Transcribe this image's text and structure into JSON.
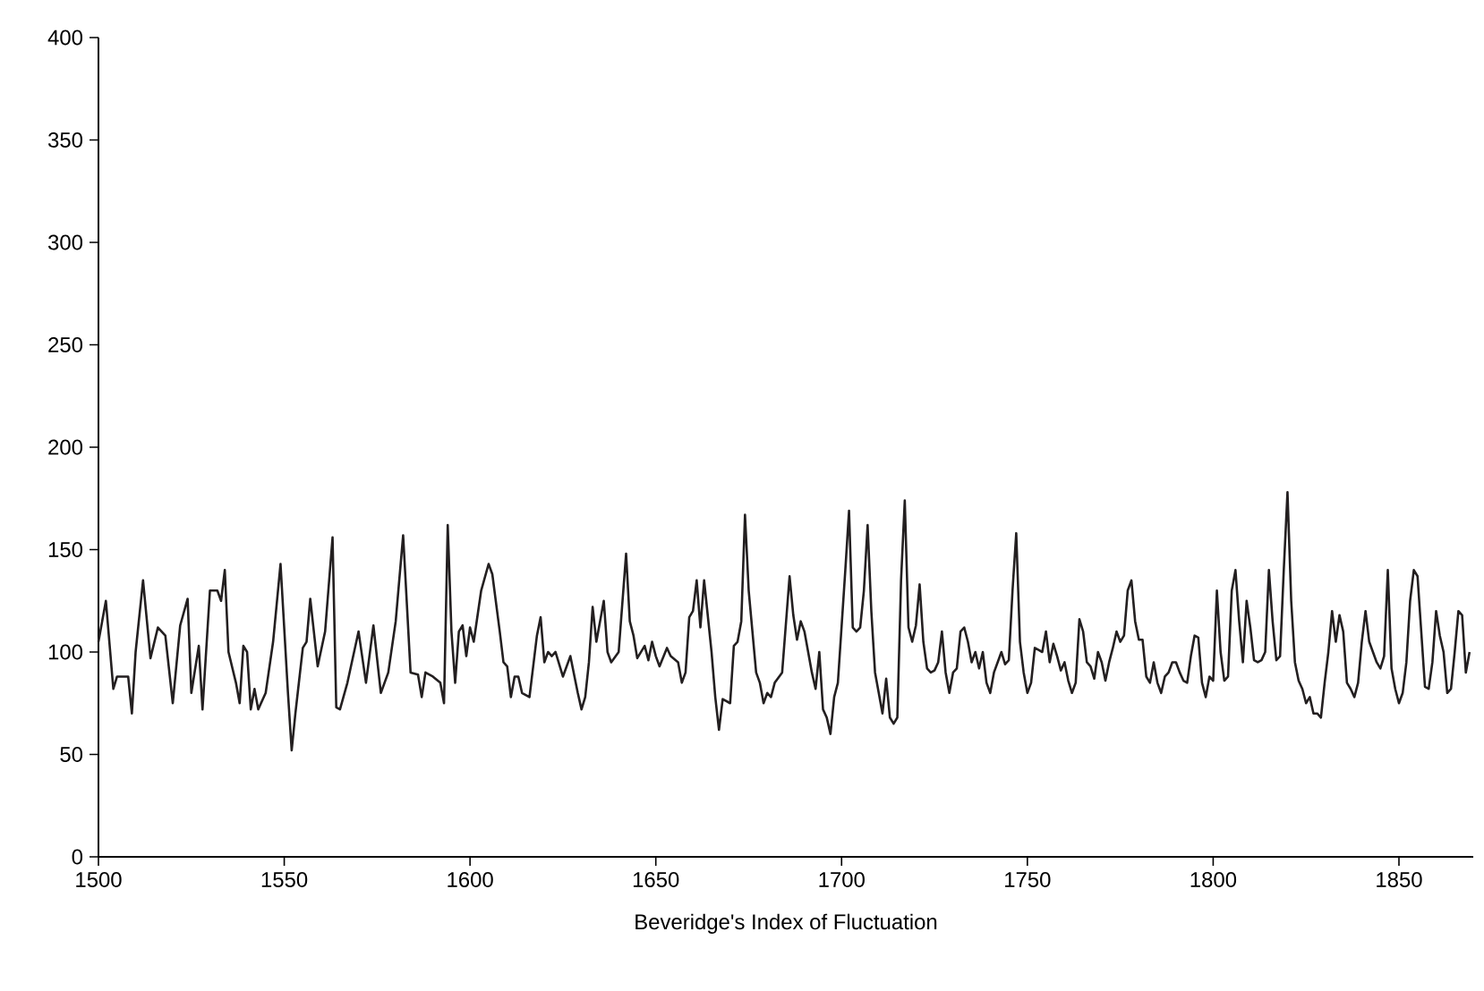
{
  "chart_data": {
    "type": "line",
    "xlabel": "Beveridge's Index of Fluctuation",
    "xlim": [
      1500,
      1870
    ],
    "xticks": [
      1500,
      1550,
      1600,
      1650,
      1700,
      1750,
      1800,
      1850
    ],
    "ylim": [
      0,
      400
    ],
    "yticks": [
      0,
      50,
      100,
      150,
      200,
      250,
      300,
      350,
      400
    ],
    "grid": false,
    "marker": "none",
    "line_style": "solid",
    "series": [
      {
        "color": "#231f20",
        "x": [
          1500,
          1502,
          1504,
          1505,
          1508,
          1509,
          1510,
          1512,
          1514,
          1516,
          1518,
          1520,
          1522,
          1524,
          1525,
          1527,
          1528,
          1530,
          1532,
          1533,
          1534,
          1535,
          1537,
          1538,
          1539,
          1540,
          1541,
          1542,
          1543,
          1545,
          1547,
          1549,
          1551,
          1552,
          1553,
          1555,
          1556,
          1557,
          1559,
          1561,
          1563,
          1564,
          1565,
          1567,
          1570,
          1572,
          1574,
          1576,
          1578,
          1580,
          1582,
          1584,
          1586,
          1587,
          1588,
          1590,
          1592,
          1593,
          1594,
          1595,
          1596,
          1597,
          1598,
          1599,
          1600,
          1601,
          1603,
          1605,
          1606,
          1608,
          1609,
          1610,
          1611,
          1612,
          1613,
          1614,
          1616,
          1618,
          1619,
          1620,
          1621,
          1622,
          1623,
          1625,
          1627,
          1629,
          1630,
          1631,
          1632,
          1633,
          1634,
          1636,
          1637,
          1638,
          1640,
          1642,
          1643,
          1644,
          1645,
          1647,
          1648,
          1649,
          1650,
          1651,
          1653,
          1654,
          1656,
          1657,
          1658,
          1659,
          1660,
          1661,
          1662,
          1663,
          1665,
          1666,
          1667,
          1668,
          1670,
          1671,
          1672,
          1673,
          1674,
          1675,
          1677,
          1678,
          1679,
          1680,
          1681,
          1682,
          1684,
          1686,
          1687,
          1688,
          1689,
          1690,
          1692,
          1693,
          1694,
          1695,
          1696,
          1697,
          1698,
          1699,
          1701,
          1702,
          1703,
          1704,
          1705,
          1706,
          1707,
          1708,
          1709,
          1710,
          1711,
          1712,
          1713,
          1714,
          1715,
          1716,
          1717,
          1718,
          1719,
          1720,
          1721,
          1722,
          1723,
          1724,
          1725,
          1726,
          1727,
          1728,
          1729,
          1730,
          1731,
          1732,
          1733,
          1734,
          1735,
          1736,
          1737,
          1738,
          1739,
          1740,
          1741,
          1742,
          1743,
          1744,
          1745,
          1746,
          1747,
          1748,
          1749,
          1750,
          1751,
          1752,
          1753,
          1754,
          1755,
          1756,
          1757,
          1758,
          1759,
          1760,
          1761,
          1762,
          1763,
          1764,
          1765,
          1766,
          1767,
          1768,
          1769,
          1770,
          1771,
          1772,
          1773,
          1774,
          1775,
          1776,
          1777,
          1778,
          1779,
          1780,
          1781,
          1782,
          1783,
          1784,
          1785,
          1786,
          1787,
          1788,
          1789,
          1790,
          1791,
          1792,
          1793,
          1794,
          1795,
          1796,
          1797,
          1798,
          1799,
          1800,
          1801,
          1802,
          1803,
          1804,
          1805,
          1806,
          1807,
          1808,
          1809,
          1810,
          1811,
          1812,
          1813,
          1814,
          1815,
          1816,
          1817,
          1818,
          1819,
          1820,
          1821,
          1822,
          1823,
          1824,
          1825,
          1826,
          1827,
          1828,
          1829,
          1830,
          1831,
          1832,
          1833,
          1834,
          1835,
          1836,
          1837,
          1838,
          1839,
          1840,
          1841,
          1842,
          1843,
          1844,
          1845,
          1846,
          1847,
          1848,
          1849,
          1850,
          1851,
          1852,
          1853,
          1854,
          1855,
          1856,
          1857,
          1858,
          1859,
          1860,
          1861,
          1862,
          1863,
          1864,
          1865,
          1866,
          1867,
          1868,
          1869
        ],
        "values": [
          105,
          125,
          82,
          88,
          88,
          70,
          100,
          135,
          97,
          112,
          108,
          75,
          113,
          126,
          80,
          103,
          72,
          130,
          130,
          125,
          140,
          100,
          85,
          75,
          103,
          100,
          72,
          82,
          72,
          80,
          105,
          143,
          80,
          52,
          70,
          102,
          105,
          126,
          93,
          110,
          156,
          73,
          72,
          85,
          110,
          85,
          113,
          80,
          90,
          115,
          157,
          90,
          89,
          78,
          90,
          88,
          85,
          75,
          162,
          110,
          85,
          110,
          113,
          98,
          112,
          105,
          130,
          143,
          138,
          110,
          95,
          93,
          78,
          88,
          88,
          80,
          78,
          108,
          117,
          95,
          100,
          98,
          100,
          88,
          98,
          80,
          72,
          78,
          95,
          122,
          105,
          125,
          100,
          95,
          100,
          148,
          115,
          108,
          97,
          103,
          96,
          105,
          98,
          93,
          102,
          98,
          95,
          85,
          90,
          117,
          120,
          135,
          112,
          135,
          100,
          78,
          62,
          77,
          75,
          103,
          105,
          115,
          167,
          130,
          90,
          85,
          75,
          80,
          78,
          85,
          90,
          137,
          118,
          106,
          115,
          110,
          90,
          82,
          100,
          72,
          68,
          60,
          78,
          85,
          140,
          169,
          112,
          110,
          112,
          130,
          162,
          120,
          90,
          80,
          70,
          87,
          68,
          65,
          68,
          135,
          174,
          112,
          105,
          113,
          133,
          105,
          92,
          90,
          91,
          95,
          110,
          90,
          80,
          90,
          92,
          110,
          112,
          105,
          95,
          100,
          92,
          100,
          85,
          80,
          90,
          95,
          100,
          94,
          96,
          130,
          158,
          105,
          90,
          80,
          85,
          102,
          101,
          100,
          110,
          95,
          104,
          98,
          91,
          95,
          86,
          80,
          85,
          116,
          110,
          95,
          93,
          87,
          100,
          95,
          86,
          95,
          102,
          110,
          105,
          108,
          130,
          135,
          115,
          106,
          106,
          88,
          85,
          95,
          85,
          80,
          88,
          90,
          95,
          95,
          90,
          86,
          85,
          98,
          108,
          107,
          85,
          78,
          88,
          86,
          130,
          100,
          86,
          88,
          130,
          140,
          115,
          95,
          125,
          112,
          96,
          95,
          96,
          100,
          140,
          115,
          96,
          98,
          140,
          178,
          125,
          95,
          86,
          82,
          75,
          78,
          70,
          70,
          68,
          85,
          100,
          120,
          105,
          118,
          110,
          85,
          82,
          78,
          85,
          105,
          120,
          105,
          100,
          95,
          92,
          98,
          140,
          92,
          82,
          75,
          80,
          95,
          125,
          140,
          137,
          110,
          83,
          82,
          95,
          120,
          108,
          100,
          80,
          82,
          100,
          120,
          118,
          90,
          100
        ]
      }
    ]
  }
}
